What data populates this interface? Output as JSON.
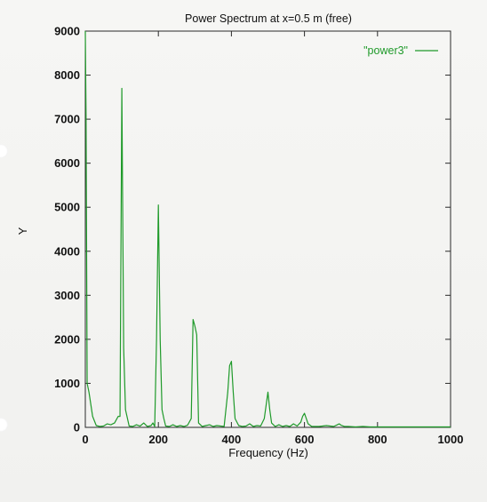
{
  "chart_data": {
    "type": "line",
    "title": "Power Spectrum at x=0.5 m (free)",
    "xlabel": "Frequency (Hz)",
    "ylabel": "Y",
    "xlim": [
      0,
      1000
    ],
    "ylim": [
      0,
      9000
    ],
    "xticks": [
      0,
      200,
      400,
      600,
      800,
      1000
    ],
    "yticks": [
      0,
      1000,
      2000,
      3000,
      4000,
      5000,
      6000,
      7000,
      8000,
      9000
    ],
    "grid": false,
    "legend_position": "top-right",
    "series_color": "#1f9a2a",
    "series": [
      {
        "name": "\"power3\"",
        "x": [
          0,
          2,
          5,
          10,
          20,
          30,
          40,
          50,
          60,
          70,
          80,
          90,
          95,
          100,
          105,
          110,
          120,
          130,
          140,
          150,
          160,
          170,
          180,
          185,
          190,
          195,
          200,
          205,
          210,
          215,
          220,
          230,
          240,
          250,
          260,
          270,
          280,
          290,
          295,
          300,
          305,
          310,
          320,
          330,
          340,
          350,
          360,
          370,
          380,
          390,
          395,
          400,
          405,
          410,
          420,
          430,
          440,
          450,
          460,
          470,
          480,
          490,
          495,
          500,
          505,
          510,
          520,
          530,
          540,
          550,
          560,
          570,
          580,
          590,
          595,
          600,
          605,
          610,
          620,
          640,
          660,
          680,
          690,
          695,
          700,
          710,
          720,
          740,
          760,
          780,
          800,
          820,
          840,
          860,
          880,
          900,
          920,
          940,
          960,
          980,
          1000
        ],
        "values": [
          9000,
          7100,
          1000,
          800,
          250,
          40,
          20,
          30,
          80,
          60,
          100,
          250,
          250,
          7700,
          1800,
          400,
          30,
          20,
          60,
          30,
          100,
          20,
          40,
          100,
          20,
          2000,
          5050,
          2000,
          400,
          200,
          30,
          20,
          60,
          20,
          40,
          20,
          50,
          200,
          2450,
          2300,
          2100,
          100,
          20,
          40,
          60,
          20,
          40,
          30,
          20,
          800,
          1400,
          1500,
          800,
          200,
          40,
          20,
          30,
          80,
          20,
          40,
          30,
          200,
          500,
          800,
          400,
          100,
          20,
          60,
          20,
          40,
          20,
          80,
          30,
          120,
          250,
          320,
          200,
          80,
          20,
          20,
          40,
          20,
          60,
          80,
          50,
          20,
          20,
          10,
          20,
          10,
          10,
          10,
          10,
          10,
          10,
          10,
          10,
          10,
          10,
          10,
          10
        ]
      }
    ]
  }
}
